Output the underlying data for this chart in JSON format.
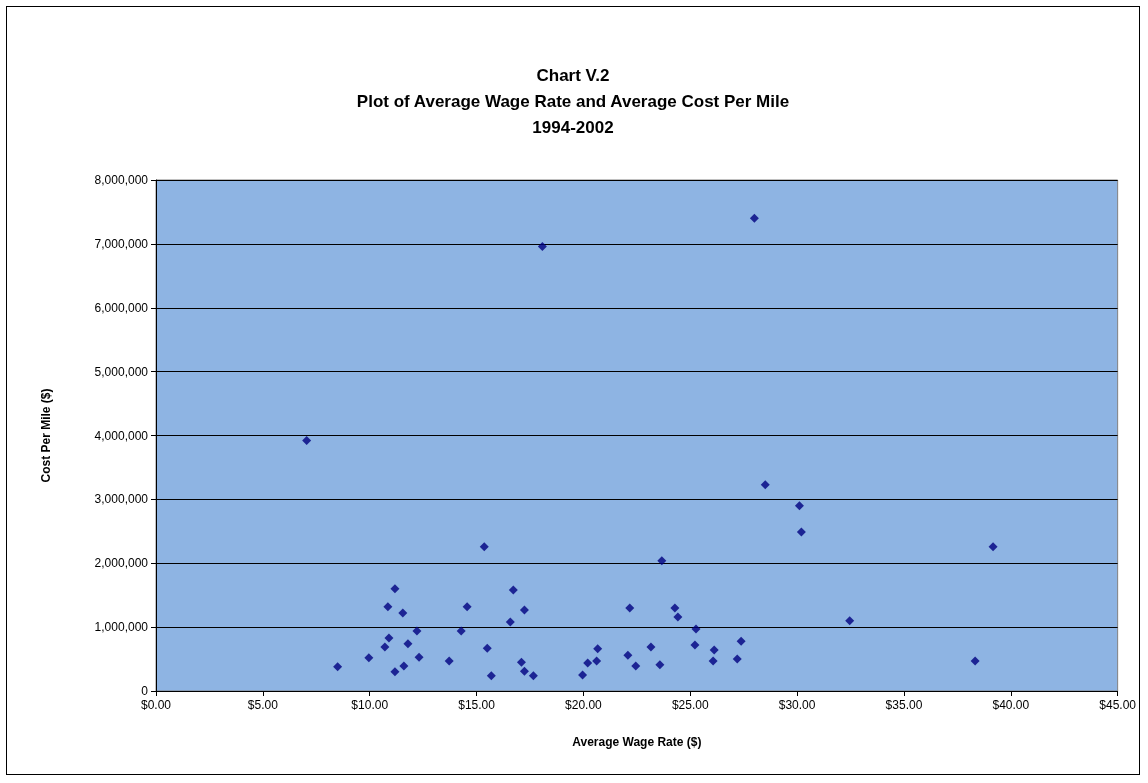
{
  "chart_data": {
    "type": "scatter",
    "title": "Chart V.2\nPlot of Average Wage Rate and Average Cost Per Mile\n1994-2002",
    "xlabel": "Average Wage Rate ($)",
    "ylabel": "Cost Per Mile ($)",
    "x": [
      7.05,
      8.5,
      9.96,
      10.71,
      10.85,
      10.9,
      11.18,
      11.18,
      11.55,
      11.6,
      11.79,
      12.21,
      12.31,
      13.72,
      14.28,
      14.56,
      15.36,
      15.5,
      15.69,
      16.58,
      16.72,
      17.1,
      17.24,
      17.24,
      17.66,
      18.08,
      19.96,
      20.2,
      20.62,
      20.67,
      22.08,
      22.17,
      22.45,
      23.16,
      23.58,
      24.28,
      24.42,
      23.67,
      25.27,
      25.22,
      26.12,
      26.07,
      27.38,
      27.2,
      28.0,
      28.51,
      30.11,
      30.2,
      32.46,
      38.33,
      39.17
    ],
    "values": [
      3920000,
      380000,
      520000,
      690000,
      1320000,
      830000,
      1600000,
      300000,
      1220000,
      390000,
      740000,
      940000,
      530000,
      470000,
      940000,
      1320000,
      2260000,
      670000,
      240000,
      1080000,
      1580000,
      450000,
      1270000,
      310000,
      240000,
      6960000,
      250000,
      440000,
      470000,
      660000,
      560000,
      1300000,
      390000,
      690000,
      410000,
      1300000,
      1160000,
      2040000,
      970000,
      720000,
      640000,
      470000,
      780000,
      500000,
      7400000,
      3230000,
      2900000,
      2490000,
      1100000,
      470000,
      2260000
    ],
    "color": "#000080",
    "marker": "diamond",
    "grid": "y",
    "xlim": [
      0,
      45
    ],
    "xticks": [
      {
        "value": 0,
        "label": "$0.00"
      },
      {
        "value": 5,
        "label": "$5.00"
      },
      {
        "value": 10,
        "label": "$10.00"
      },
      {
        "value": 15,
        "label": "$15.00"
      },
      {
        "value": 20,
        "label": "$20.00"
      },
      {
        "value": 25,
        "label": "$25.00"
      },
      {
        "value": 30,
        "label": "$30.00"
      },
      {
        "value": 35,
        "label": "$35.00"
      },
      {
        "value": 40,
        "label": "$40.00"
      },
      {
        "value": 45,
        "label": "$45.00"
      }
    ],
    "ylim": [
      0,
      8000000
    ],
    "yticks": [
      0,
      {
        "value": 1000000,
        "label": "1,000,000"
      },
      {
        "value": 2000000,
        "label": "2,000,000"
      },
      {
        "value": 3000000,
        "label": "3,000,000"
      },
      {
        "value": 4000000,
        "label": "4,000,000"
      },
      {
        "value": 5000000,
        "label": "5,000,000"
      },
      {
        "value": 6000000,
        "label": "6,000,000"
      },
      {
        "value": 7000000,
        "label": "7,000,000"
      },
      {
        "value": 8000000,
        "label": "8,000,000"
      }
    ]
  }
}
